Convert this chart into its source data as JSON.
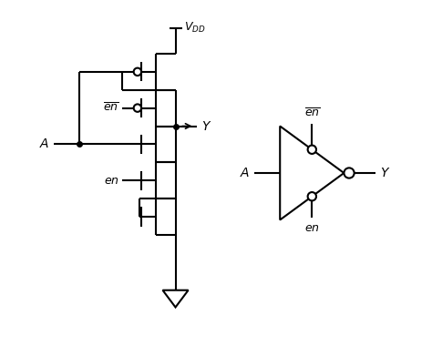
{
  "bg_color": "#ffffff",
  "line_color": "#000000",
  "line_width": 1.5,
  "fig_width": 4.74,
  "fig_height": 3.8,
  "dpi": 100
}
